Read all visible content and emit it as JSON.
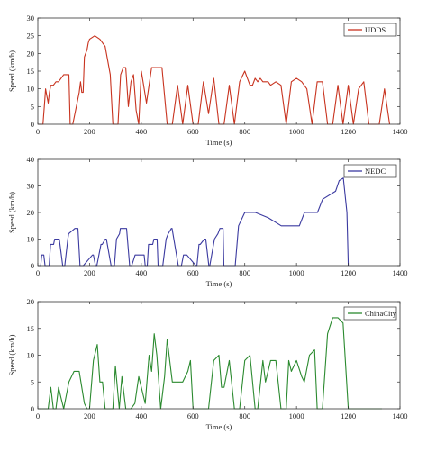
{
  "chart_data": [
    {
      "type": "line",
      "xlabel": "Time (s)",
      "ylabel": "Speed (km/h)",
      "xlim": [
        0,
        1400
      ],
      "ylim": [
        0,
        30
      ],
      "xticks": [
        0,
        200,
        400,
        600,
        800,
        1000,
        1200,
        1400
      ],
      "yticks": [
        0,
        5,
        10,
        15,
        20,
        25,
        30
      ],
      "legend_position": "top-right",
      "series": [
        {
          "name": "UDDS",
          "color": "#c8331f",
          "x": [
            0,
            20,
            25,
            30,
            35,
            40,
            45,
            50,
            55,
            60,
            70,
            80,
            90,
            100,
            110,
            120,
            125,
            135,
            160,
            165,
            170,
            175,
            180,
            185,
            190,
            195,
            200,
            220,
            240,
            260,
            280,
            290,
            300,
            310,
            320,
            330,
            340,
            350,
            360,
            370,
            380,
            390,
            400,
            420,
            440,
            460,
            480,
            500,
            520,
            540,
            560,
            580,
            600,
            620,
            640,
            660,
            680,
            700,
            720,
            740,
            760,
            780,
            800,
            810,
            820,
            830,
            840,
            850,
            860,
            870,
            880,
            890,
            900,
            920,
            940,
            960,
            980,
            1000,
            1020,
            1040,
            1060,
            1080,
            1100,
            1120,
            1140,
            1160,
            1180,
            1200,
            1220,
            1240,
            1260,
            1280,
            1300,
            1320,
            1340,
            1360
          ],
          "y": [
            0,
            0,
            5,
            10,
            8,
            6,
            9,
            11,
            11,
            11,
            12,
            12,
            13,
            14,
            14,
            14,
            0,
            0,
            9,
            12,
            9,
            9,
            19,
            20,
            21,
            23,
            24,
            25,
            24,
            22,
            14,
            0,
            0,
            0,
            14,
            16,
            16,
            5,
            12,
            14,
            4,
            0,
            15,
            6,
            16,
            16,
            16,
            0,
            0,
            11,
            0,
            11,
            0,
            0,
            12,
            3,
            13,
            0,
            0,
            11,
            0,
            12,
            15,
            13,
            11,
            11,
            13,
            12,
            13,
            12,
            12,
            12,
            11,
            12,
            11,
            0,
            12,
            13,
            12,
            10,
            0,
            12,
            12,
            0,
            0,
            11,
            0,
            11,
            0,
            10,
            12,
            0,
            0,
            0,
            10,
            0
          ]
        }
      ]
    },
    {
      "type": "line",
      "xlabel": "Time (s)",
      "ylabel": "Speed (km/h)",
      "xlim": [
        0,
        1400
      ],
      "ylim": [
        0,
        40
      ],
      "xticks": [
        0,
        200,
        400,
        600,
        800,
        1000,
        1200,
        1400
      ],
      "yticks": [
        0,
        10,
        20,
        30,
        40
      ],
      "legend_position": "top-right",
      "series": [
        {
          "name": "NEDC",
          "color": "#3b3aa0",
          "x": [
            0,
            11,
            15,
            23,
            28,
            44,
            49,
            61,
            65,
            83,
            96,
            104,
            116,
            119,
            143,
            155,
            163,
            176,
            211,
            215,
            223,
            228,
            244,
            249,
            261,
            265,
            283,
            296,
            304,
            316,
            319,
            343,
            355,
            363,
            376,
            411,
            415,
            423,
            428,
            444,
            449,
            461,
            465,
            483,
            496,
            504,
            516,
            519,
            543,
            555,
            563,
            576,
            611,
            615,
            623,
            628,
            644,
            649,
            661,
            665,
            683,
            696,
            704,
            716,
            719,
            743,
            755,
            763,
            776,
            800,
            841,
            891,
            941,
            961,
            1011,
            1031,
            1081,
            1101,
            1151,
            1165,
            1181,
            1195,
            1200
          ],
          "y": [
            0,
            0,
            4,
            4,
            0,
            0,
            8,
            8,
            10,
            10,
            0,
            0,
            10,
            12,
            14,
            14,
            0,
            0,
            4,
            4,
            0,
            0,
            8,
            8,
            10,
            10,
            0,
            0,
            10,
            12,
            14,
            14,
            0,
            0,
            4,
            4,
            0,
            0,
            8,
            8,
            10,
            10,
            0,
            0,
            10,
            12,
            14,
            14,
            0,
            0,
            4,
            4,
            0,
            0,
            8,
            8,
            10,
            10,
            0,
            0,
            10,
            12,
            14,
            14,
            0,
            0,
            0,
            0,
            15,
            20,
            20,
            18,
            15,
            15,
            15,
            20,
            20,
            25,
            28,
            32,
            33,
            20,
            0
          ]
        }
      ]
    },
    {
      "type": "line",
      "xlabel": "Time (s)",
      "ylabel": "Speed (km/h)",
      "xlim": [
        0,
        1400
      ],
      "ylim": [
        0,
        20
      ],
      "xticks": [
        0,
        200,
        400,
        600,
        800,
        1000,
        1200,
        1400
      ],
      "yticks": [
        0,
        5,
        10,
        15,
        20
      ],
      "legend_position": "top-right",
      "series": [
        {
          "name": "ChinaCity",
          "color": "#2b8a2f",
          "x": [
            0,
            40,
            50,
            60,
            70,
            80,
            90,
            100,
            120,
            140,
            160,
            180,
            190,
            200,
            215,
            230,
            240,
            250,
            260,
            270,
            290,
            300,
            315,
            325,
            340,
            350,
            360,
            375,
            390,
            400,
            415,
            430,
            440,
            450,
            460,
            475,
            490,
            500,
            510,
            520,
            530,
            560,
            580,
            590,
            600,
            615,
            630,
            640,
            660,
            680,
            700,
            710,
            720,
            740,
            760,
            780,
            800,
            820,
            840,
            850,
            870,
            880,
            900,
            920,
            940,
            960,
            970,
            980,
            1000,
            1020,
            1030,
            1050,
            1070,
            1080,
            1100,
            1120,
            1140,
            1160,
            1180,
            1200,
            1220,
            1240,
            1260,
            1280,
            1300,
            1330
          ],
          "y": [
            0,
            0,
            4,
            0,
            0,
            4,
            2,
            0,
            5,
            7,
            7,
            1,
            0,
            0,
            9,
            12,
            5,
            5,
            0,
            0,
            0,
            8,
            0,
            6,
            0,
            0,
            0,
            1,
            6,
            4,
            1,
            10,
            7,
            14,
            10,
            0,
            6,
            13,
            9,
            5,
            5,
            5,
            7,
            9,
            0,
            0,
            0,
            0,
            0,
            9,
            10,
            4,
            4,
            9,
            0,
            0,
            9,
            10,
            0,
            0,
            9,
            5,
            9,
            9,
            0,
            0,
            9,
            7,
            9,
            6,
            5,
            10,
            11,
            0,
            0,
            14,
            17,
            17,
            16,
            0,
            0,
            0,
            0,
            0,
            0,
            0
          ]
        }
      ]
    }
  ]
}
